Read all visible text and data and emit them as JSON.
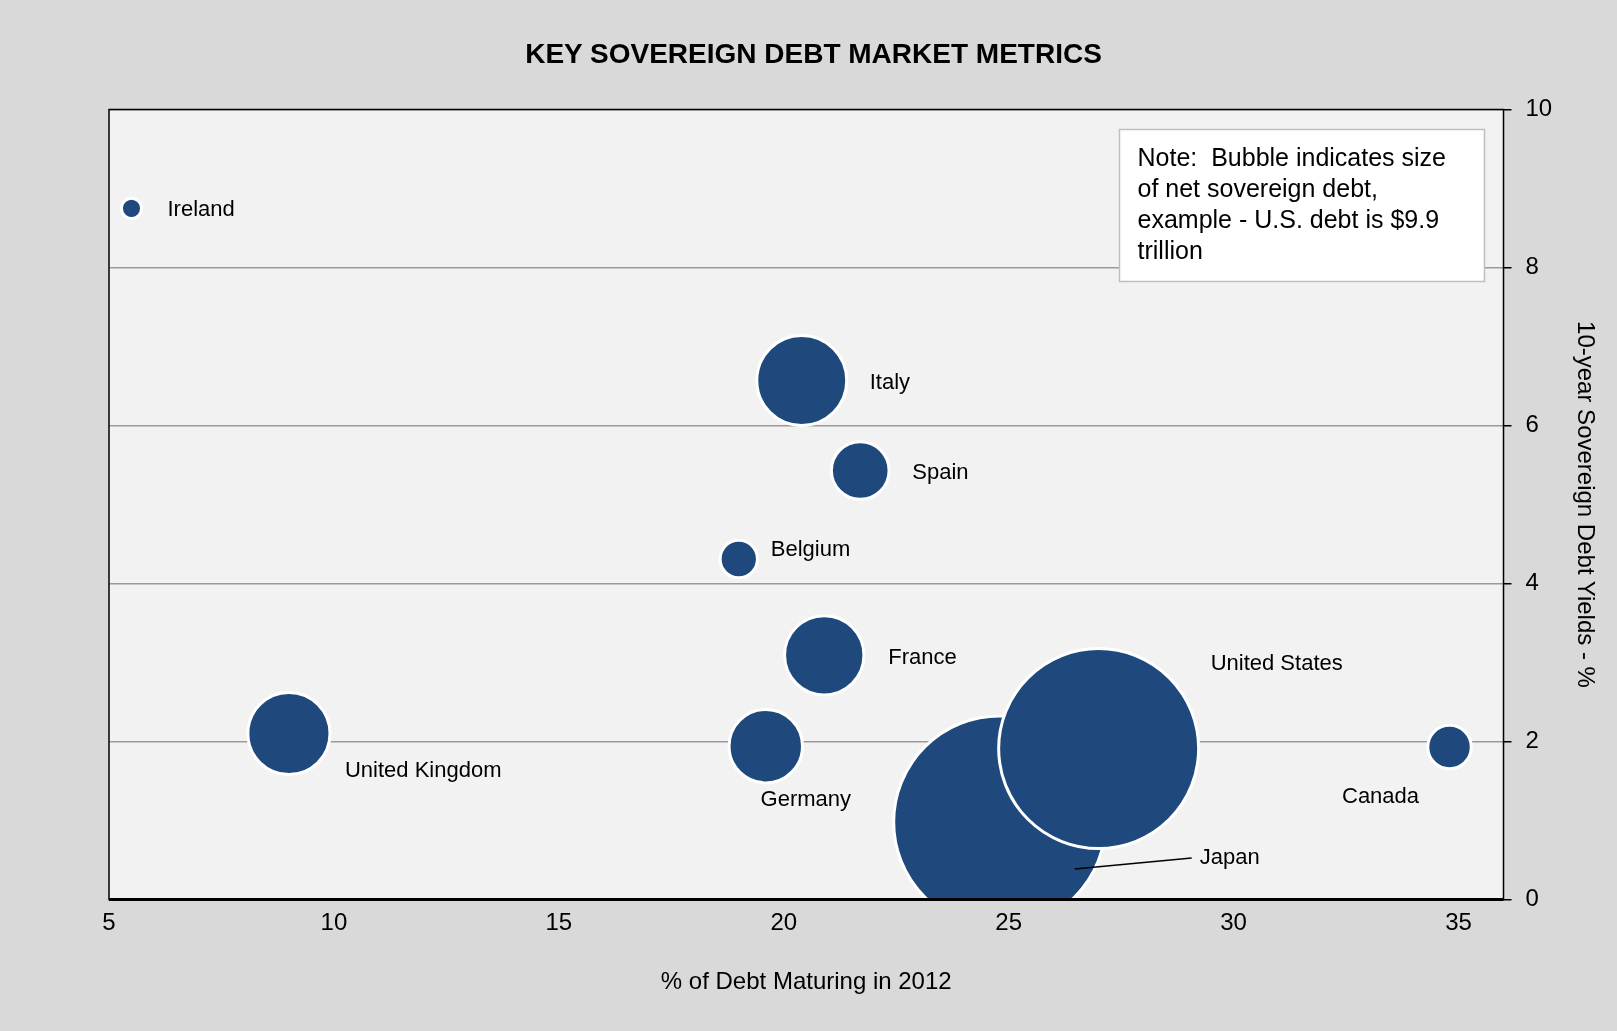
{
  "chart_data": {
    "type": "bubble",
    "title": "KEY SOVEREIGN DEBT MARKET METRICS",
    "xlabel": "% of Debt Maturing in 2012",
    "y2label": "10-year Sovereign Debt Yields - %",
    "series": [
      {
        "name": "Ireland",
        "color": "#1f497d",
        "x": [
          5.5
        ],
        "values": [
          8.75
        ],
        "sizes": [
          0.009
        ]
      },
      {
        "name": "Italy",
        "color": "#1f497d",
        "x": [
          20.4
        ],
        "values": [
          6.57
        ],
        "sizes": [
          0.18
        ]
      },
      {
        "name": "Spain",
        "color": "#1f497d",
        "x": [
          21.7
        ],
        "values": [
          5.43
        ],
        "sizes": [
          0.074
        ]
      },
      {
        "name": "Belgium",
        "color": "#1f497d",
        "x": [
          19.0
        ],
        "values": [
          4.31
        ],
        "sizes": [
          0.031
        ]
      },
      {
        "name": "France",
        "color": "#1f497d",
        "x": [
          20.9
        ],
        "values": [
          3.09
        ],
        "sizes": [
          0.14
        ]
      },
      {
        "name": "United Kingdom",
        "color": "#1f497d",
        "x": [
          9.0
        ],
        "values": [
          2.1
        ],
        "sizes": [
          0.15
        ]
      },
      {
        "name": "Germany",
        "color": "#1f497d",
        "x": [
          19.6
        ],
        "values": [
          1.94
        ],
        "sizes": [
          0.12
        ]
      },
      {
        "name": "Japan",
        "color": "#1f497d",
        "x": [
          24.8
        ],
        "values": [
          0.98
        ],
        "sizes": [
          1
        ]
      },
      {
        "name": "United States",
        "color": "#1f497d",
        "x": [
          27.0
        ],
        "values": [
          1.91
        ],
        "sizes": [
          0.89
        ]
      },
      {
        "name": "Canada",
        "color": "#1f497d",
        "x": [
          34.8
        ],
        "values": [
          1.93
        ],
        "sizes": [
          0.042
        ]
      }
    ],
    "xlim": [
      5,
      36
    ],
    "xticks": [
      5,
      10,
      15,
      20,
      25,
      30,
      35
    ],
    "ylim": [
      0,
      10
    ],
    "yticks": [
      0,
      2,
      4,
      6,
      8,
      10
    ],
    "grid": "y",
    "legend": false,
    "annotations": [
      "Note:  Bubble indicates size of net sovereign debt, example - U.S. debt is $9.9 trillion"
    ]
  }
}
